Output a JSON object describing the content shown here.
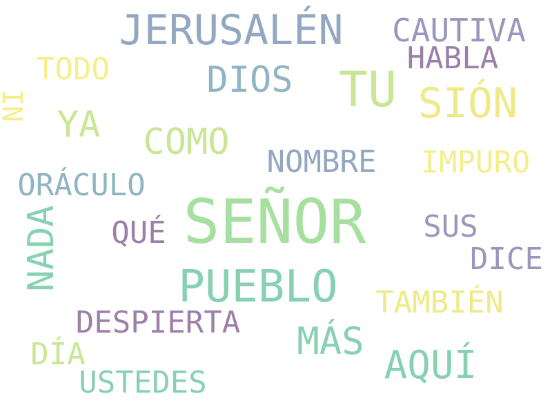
{
  "palette": {
    "slate": "#94a7c1",
    "lilac": "#9a97bd",
    "mauve": "#9d80aa",
    "teal": "#8fb5c2",
    "mint": "#87d1b2",
    "green": "#a6df9f",
    "lime": "#c8e694",
    "yellow": "#eeea87",
    "paleyellow": "#f5ee8c"
  },
  "words": [
    {
      "text": "JERUSALÉN",
      "color": "slate"
    },
    {
      "text": "CAUTIVA",
      "color": "lilac"
    },
    {
      "text": "HABLA",
      "color": "mauve"
    },
    {
      "text": "TODO",
      "color": "paleyellow"
    },
    {
      "text": "DIOS",
      "color": "teal"
    },
    {
      "text": "TU",
      "color": "lime"
    },
    {
      "text": "SIÓN",
      "color": "yellow"
    },
    {
      "text": "NI",
      "color": "paleyellow"
    },
    {
      "text": "YA",
      "color": "lime"
    },
    {
      "text": "COMO",
      "color": "lime"
    },
    {
      "text": "NOMBRE",
      "color": "slate"
    },
    {
      "text": "IMPURO",
      "color": "paleyellow"
    },
    {
      "text": "ORÁCULO",
      "color": "teal"
    },
    {
      "text": "SEÑOR",
      "color": "green"
    },
    {
      "text": "NADA",
      "color": "mint"
    },
    {
      "text": "QUÉ",
      "color": "mauve"
    },
    {
      "text": "SUS",
      "color": "lilac"
    },
    {
      "text": "DICE",
      "color": "lilac"
    },
    {
      "text": "PUEBLO",
      "color": "mint"
    },
    {
      "text": "TAMBIÉN",
      "color": "yellow"
    },
    {
      "text": "DESPIERTA",
      "color": "mauve"
    },
    {
      "text": "MÁS",
      "color": "mint"
    },
    {
      "text": "DÍA",
      "color": "lime"
    },
    {
      "text": "AQUÍ",
      "color": "mint"
    },
    {
      "text": "USTEDES",
      "color": "mint"
    }
  ]
}
